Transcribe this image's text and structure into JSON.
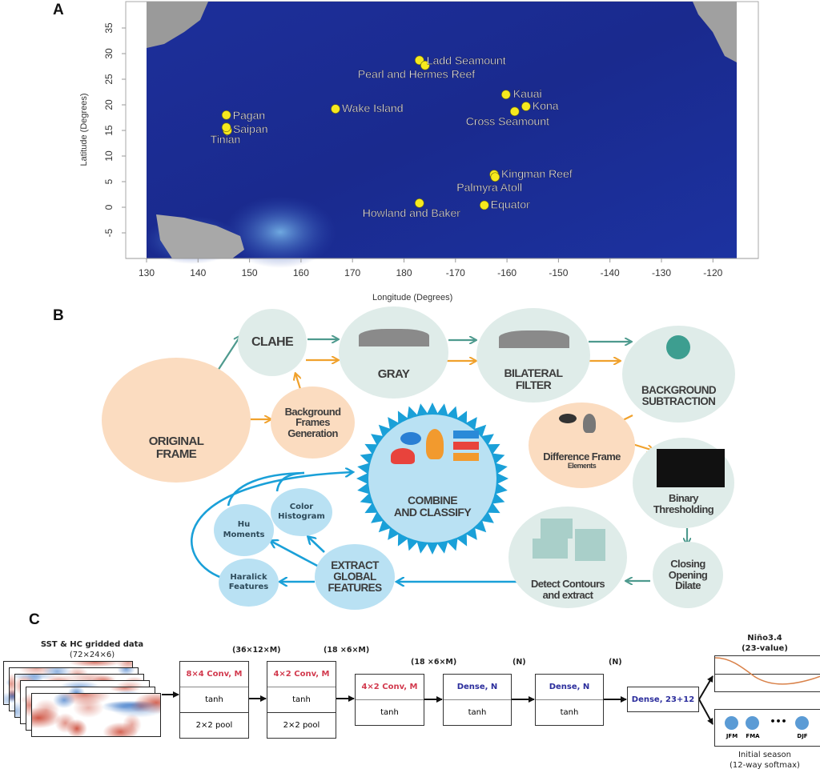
{
  "panel_labels": {
    "a": "A",
    "b": "B",
    "c": "C"
  },
  "chart_data": {
    "type": "scatter",
    "xlabel": "Longitude (Degrees)",
    "ylabel": "Latitude (Degrees)",
    "x_ticks": [
      130,
      140,
      150,
      160,
      170,
      180,
      -170,
      -160,
      -150,
      -140,
      -130,
      -120
    ],
    "y_ticks": [
      35,
      30,
      25,
      20,
      15,
      10,
      5,
      0,
      -5
    ],
    "xlim": [
      130,
      -115
    ],
    "ylim": [
      -10,
      40
    ],
    "grid": false,
    "marker_color": "#f6e91e",
    "points": [
      {
        "label": "Ladd Seamount",
        "lon": -177.0,
        "lat": 28.7
      },
      {
        "label": "Pearl and Hermes Reef",
        "lon": -175.9,
        "lat": 27.7
      },
      {
        "label": "Kauai",
        "lon": -160.2,
        "lat": 22.0
      },
      {
        "label": "Kona",
        "lon": -156.3,
        "lat": 19.7
      },
      {
        "label": "Cross Seamount",
        "lon": -158.5,
        "lat": 18.7
      },
      {
        "label": "Wake Island",
        "lon": 166.7,
        "lat": 19.2
      },
      {
        "label": "Pagan",
        "lon": 145.5,
        "lat": 18.0
      },
      {
        "label": "Saipan",
        "lon": 145.7,
        "lat": 15.0
      },
      {
        "label": "Tinian",
        "lon": 145.5,
        "lat": 15.6
      },
      {
        "label": "Kingman Reef",
        "lon": -162.5,
        "lat": 6.4
      },
      {
        "label": "Palmyra Atoll",
        "lon": -162.3,
        "lat": 5.9
      },
      {
        "label": "Equator",
        "lon": -164.4,
        "lat": 0.4
      },
      {
        "label": "Howland and Baker",
        "lon": -177.0,
        "lat": 0.8
      }
    ]
  },
  "workflow": {
    "original_frame": "ORIGINAL\nFRAME",
    "clahe": "CLAHE",
    "gray": "GRAY",
    "bilateral_filter": "BILATERAL\nFILTER",
    "background_subtraction": "BACKGROUND\nSUBTRACTION",
    "background_frames_generation": "Background\nFrames\nGeneration",
    "difference_frame": "Difference Frame",
    "difference_frame_sub": "Elements",
    "binary_thresholding": "Binary\nThresholding",
    "closing_opening_dilate": "Closing\nOpening\nDilate",
    "detect_contours": "Detect Contours\nand extract",
    "combine_and_classify": "COMBINE\nAND CLASSIFY",
    "extract_global_features": "EXTRACT\nGLOBAL\nFEATURES",
    "color_histogram": "Color\nHistogram",
    "hu_moments": "Hu\nMoments",
    "haralick_features": "Haralick\nFeatures",
    "colors": {
      "teal_arrow": "#4e9a8e",
      "orange_arrow": "#f0a12c",
      "blue_arrow": "#1aa0d8"
    }
  },
  "network": {
    "input_title": "SST & HC gridded data",
    "input_dims": "(72×24×6)",
    "layers": [
      {
        "op": "8×4 Conv, M",
        "act": "tanh",
        "pool": "2×2 pool",
        "out": "(36×12×M)"
      },
      {
        "op": "4×2 Conv, M",
        "act": "tanh",
        "pool": "2×2 pool",
        "out": "(18 ×6×M)"
      },
      {
        "op": "4×2 Conv, M",
        "act": "tanh",
        "out": "(18 ×6×M)"
      },
      {
        "op": "Dense, N",
        "act": "tanh",
        "out": "(N)"
      },
      {
        "op": "Dense, N",
        "act": "tanh",
        "out": "(N)"
      }
    ],
    "output_layer": "Dense, 23+12",
    "nino_title": "Niño3.4",
    "nino_sub": "(23-value)",
    "season_labels": [
      "JFM",
      "FMA",
      "•••",
      "DJF"
    ],
    "season_title": "Initial season",
    "season_sub": "(12-way softmax)"
  }
}
